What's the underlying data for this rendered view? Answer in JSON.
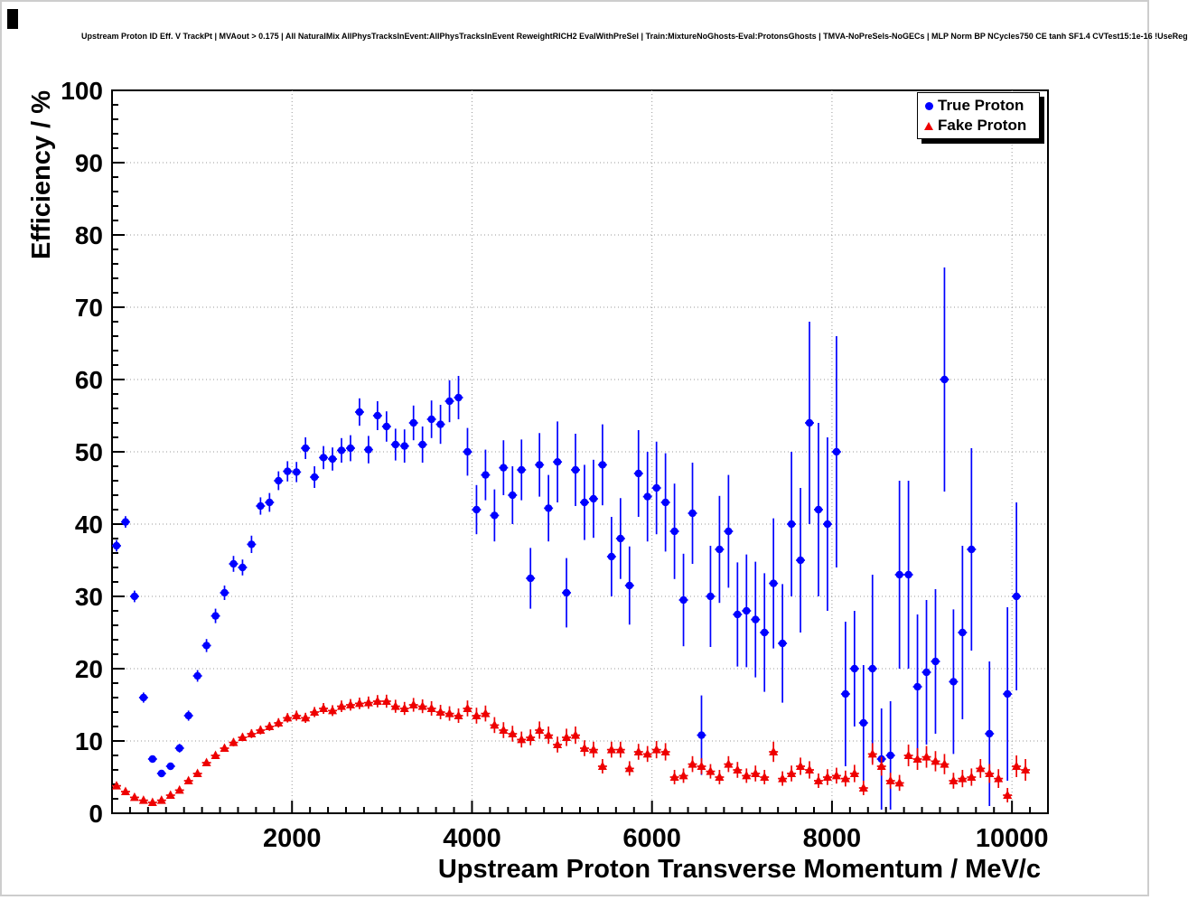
{
  "title": "Upstream Proton ID Eff. V TrackPt | MVAout > 0.175 | All NaturalMix AllPhysTracksInEvent:AllPhysTracksInEvent ReweightRICH2 EvalWithPreSel | Train:MixtureNoGhosts-Eval:ProtonsGhosts | TMVA-NoPreSels-NoGECs | MLP Norm BP NCycles750 CE tanh SF1.4 CVTest15:1e-16 !UseReg",
  "colors": {
    "true_proton": "#0000ff",
    "fake_proton": "#ee0000",
    "grid": "#999999",
    "axis": "#000000",
    "background": "#ffffff"
  },
  "chart_data": {
    "type": "scatter",
    "title": "Upstream Proton ID Eff. V TrackPt | MVAout > 0.175 | All NaturalMix AllPhysTracksInEvent:AllPhysTracksInEvent ReweightRICH2 EvalWithPreSel | Train:MixtureNoGhosts-Eval:ProtonsGhosts | TMVA-NoPreSels-NoGECs | MLP Norm BP NCycles750 CE tanh SF1.4 CVTest15:1e-16 !UseReg",
    "xlabel": "Upstream Proton Transverse Momentum / MeV/c",
    "ylabel": "Efficiency / %",
    "xlim": [
      0,
      10400
    ],
    "ylim": [
      0,
      100
    ],
    "x_ticks": [
      2000,
      4000,
      6000,
      8000,
      10000
    ],
    "y_ticks": [
      0,
      10,
      20,
      30,
      40,
      50,
      60,
      70,
      80,
      90,
      100
    ],
    "grid": true,
    "x_bin_half_width": 50,
    "legend": {
      "position": "top-right",
      "entries": [
        {
          "label": "True Proton",
          "marker": "circle",
          "color": "#0000ff"
        },
        {
          "label": "Fake Proton",
          "marker": "triangle",
          "color": "#ee0000"
        }
      ]
    },
    "series": [
      {
        "name": "True Proton",
        "marker": "circle",
        "color": "#0000ff",
        "points": [
          [
            50,
            37,
            0.8
          ],
          [
            150,
            40.3,
            0.8
          ],
          [
            250,
            30,
            0.8
          ],
          [
            350,
            16,
            0.7
          ],
          [
            450,
            7.5,
            0.5
          ],
          [
            550,
            5.5,
            0.5
          ],
          [
            650,
            6.5,
            0.5
          ],
          [
            750,
            9,
            0.6
          ],
          [
            850,
            13.5,
            0.7
          ],
          [
            950,
            19,
            0.8
          ],
          [
            1050,
            23.2,
            0.9
          ],
          [
            1150,
            27.3,
            1.0
          ],
          [
            1250,
            30.5,
            1.0
          ],
          [
            1350,
            34.5,
            1.1
          ],
          [
            1450,
            34,
            1.1
          ],
          [
            1550,
            37.2,
            1.2
          ],
          [
            1650,
            42.5,
            1.2
          ],
          [
            1750,
            43,
            1.3
          ],
          [
            1850,
            46,
            1.3
          ],
          [
            1950,
            47.3,
            1.4
          ],
          [
            2050,
            47.2,
            1.4
          ],
          [
            2150,
            50.5,
            1.5
          ],
          [
            2250,
            46.5,
            1.5
          ],
          [
            2350,
            49.2,
            1.6
          ],
          [
            2450,
            49,
            1.6
          ],
          [
            2550,
            50.2,
            1.7
          ],
          [
            2650,
            50.5,
            1.8
          ],
          [
            2750,
            55.5,
            1.9
          ],
          [
            2850,
            50.3,
            1.9
          ],
          [
            2950,
            55,
            2.0
          ],
          [
            3050,
            53.5,
            2.1
          ],
          [
            3150,
            51,
            2.2
          ],
          [
            3250,
            50.8,
            2.3
          ],
          [
            3350,
            54,
            2.4
          ],
          [
            3450,
            51,
            2.5
          ],
          [
            3550,
            54.5,
            2.6
          ],
          [
            3650,
            53.8,
            2.7
          ],
          [
            3750,
            57,
            2.9
          ],
          [
            3850,
            57.5,
            3.0
          ],
          [
            3950,
            50,
            3.3
          ],
          [
            4050,
            42,
            3.4
          ],
          [
            4150,
            46.8,
            3.5
          ],
          [
            4250,
            41.2,
            3.6
          ],
          [
            4350,
            47.8,
            3.8
          ],
          [
            4450,
            44,
            4.0
          ],
          [
            4550,
            47.5,
            4.2
          ],
          [
            4650,
            32.5,
            4.2
          ],
          [
            4750,
            48.2,
            4.4
          ],
          [
            4850,
            42.2,
            4.6
          ],
          [
            4950,
            48.6,
            5.6
          ],
          [
            5050,
            30.5,
            4.8
          ],
          [
            5150,
            47.5,
            5.0
          ],
          [
            5250,
            43,
            5.2
          ],
          [
            5350,
            43.5,
            5.4
          ],
          [
            5450,
            48.2,
            5.6
          ],
          [
            5550,
            35.5,
            5.5
          ],
          [
            5650,
            38,
            5.6
          ],
          [
            5750,
            31.5,
            5.4
          ],
          [
            5850,
            47,
            6.0
          ],
          [
            5950,
            43.8,
            6.2
          ],
          [
            6050,
            45,
            6.4
          ],
          [
            6150,
            43,
            6.8
          ],
          [
            6250,
            39,
            6.6
          ],
          [
            6350,
            29.5,
            6.4
          ],
          [
            6450,
            41.5,
            7.0
          ],
          [
            6550,
            10.8,
            5.5
          ],
          [
            6650,
            30,
            7.0
          ],
          [
            6750,
            36.5,
            7.4
          ],
          [
            6850,
            39,
            7.8
          ],
          [
            6950,
            27.5,
            7.2
          ],
          [
            7050,
            28,
            7.8
          ],
          [
            7150,
            26.8,
            8.0
          ],
          [
            7250,
            25,
            8.2
          ],
          [
            7350,
            31.8,
            9.0
          ],
          [
            7450,
            23.5,
            8.2
          ],
          [
            7550,
            40,
            10
          ],
          [
            7650,
            35,
            10
          ],
          [
            7750,
            54,
            14
          ],
          [
            7850,
            42,
            12
          ],
          [
            7950,
            40,
            12
          ],
          [
            8050,
            50,
            16
          ],
          [
            8150,
            16.5,
            10
          ],
          [
            8250,
            20,
            8
          ],
          [
            8350,
            12.5,
            8
          ],
          [
            8450,
            20,
            13
          ],
          [
            8550,
            7.5,
            7
          ],
          [
            8650,
            8,
            7.5
          ],
          [
            8750,
            33,
            13
          ],
          [
            8850,
            33,
            13
          ],
          [
            8950,
            17.5,
            10
          ],
          [
            9050,
            19.5,
            10
          ],
          [
            9150,
            21,
            10
          ],
          [
            9250,
            60,
            15.5
          ],
          [
            9350,
            18.2,
            10
          ],
          [
            9450,
            25,
            12
          ],
          [
            9550,
            36.5,
            14
          ],
          [
            9750,
            11,
            10
          ],
          [
            9950,
            16.5,
            12
          ],
          [
            10050,
            30,
            13
          ]
        ]
      },
      {
        "name": "Fake Proton",
        "marker": "triangle",
        "color": "#ee0000",
        "points": [
          [
            50,
            3.8,
            0.3
          ],
          [
            150,
            3.0,
            0.25
          ],
          [
            250,
            2.2,
            0.2
          ],
          [
            350,
            1.8,
            0.2
          ],
          [
            450,
            1.5,
            0.2
          ],
          [
            550,
            1.8,
            0.2
          ],
          [
            650,
            2.5,
            0.25
          ],
          [
            750,
            3.2,
            0.3
          ],
          [
            850,
            4.5,
            0.35
          ],
          [
            950,
            5.5,
            0.4
          ],
          [
            1050,
            7.0,
            0.45
          ],
          [
            1150,
            8.0,
            0.5
          ],
          [
            1250,
            9.0,
            0.5
          ],
          [
            1350,
            9.8,
            0.55
          ],
          [
            1450,
            10.5,
            0.55
          ],
          [
            1550,
            11.0,
            0.6
          ],
          [
            1650,
            11.5,
            0.6
          ],
          [
            1750,
            12.0,
            0.6
          ],
          [
            1850,
            12.5,
            0.65
          ],
          [
            1950,
            13.2,
            0.65
          ],
          [
            2050,
            13.5,
            0.7
          ],
          [
            2150,
            13.2,
            0.7
          ],
          [
            2250,
            14.0,
            0.7
          ],
          [
            2350,
            14.5,
            0.75
          ],
          [
            2450,
            14.2,
            0.75
          ],
          [
            2550,
            14.8,
            0.8
          ],
          [
            2650,
            15.0,
            0.8
          ],
          [
            2750,
            15.2,
            0.8
          ],
          [
            2850,
            15.3,
            0.85
          ],
          [
            2950,
            15.5,
            0.85
          ],
          [
            3050,
            15.5,
            0.9
          ],
          [
            3150,
            14.8,
            0.9
          ],
          [
            3250,
            14.5,
            0.9
          ],
          [
            3350,
            15.0,
            0.95
          ],
          [
            3450,
            14.8,
            0.95
          ],
          [
            3550,
            14.5,
            1.0
          ],
          [
            3650,
            14.0,
            1.0
          ],
          [
            3750,
            13.8,
            1.0
          ],
          [
            3850,
            13.5,
            1.0
          ],
          [
            3950,
            14.5,
            1.1
          ],
          [
            4050,
            13.5,
            1.1
          ],
          [
            4150,
            13.8,
            1.1
          ],
          [
            4250,
            12.2,
            1.1
          ],
          [
            4350,
            11.5,
            1.1
          ],
          [
            4450,
            11.0,
            1.1
          ],
          [
            4550,
            10.2,
            1.1
          ],
          [
            4650,
            10.5,
            1.1
          ],
          [
            4750,
            11.5,
            1.2
          ],
          [
            4850,
            10.8,
            1.2
          ],
          [
            4950,
            9.5,
            1.1
          ],
          [
            5050,
            10.5,
            1.2
          ],
          [
            5150,
            10.8,
            1.2
          ],
          [
            5250,
            9.0,
            1.1
          ],
          [
            5350,
            8.8,
            1.1
          ],
          [
            5450,
            6.5,
            1.0
          ],
          [
            5550,
            8.8,
            1.1
          ],
          [
            5650,
            8.8,
            1.1
          ],
          [
            5750,
            6.2,
            1.0
          ],
          [
            5850,
            8.5,
            1.1
          ],
          [
            5950,
            8.2,
            1.1
          ],
          [
            6050,
            8.8,
            1.2
          ],
          [
            6150,
            8.5,
            1.2
          ],
          [
            6250,
            5.0,
            1.0
          ],
          [
            6350,
            5.2,
            1.0
          ],
          [
            6450,
            6.8,
            1.1
          ],
          [
            6550,
            6.5,
            1.1
          ],
          [
            6650,
            5.8,
            1.0
          ],
          [
            6750,
            5.0,
            1.0
          ],
          [
            6850,
            6.8,
            1.1
          ],
          [
            6950,
            6.0,
            1.1
          ],
          [
            7050,
            5.2,
            1.0
          ],
          [
            7150,
            5.5,
            1.1
          ],
          [
            7250,
            5.0,
            1.0
          ],
          [
            7350,
            8.5,
            1.4
          ],
          [
            7450,
            4.8,
            1.0
          ],
          [
            7550,
            5.5,
            1.1
          ],
          [
            7650,
            6.5,
            1.2
          ],
          [
            7750,
            6.0,
            1.2
          ],
          [
            7850,
            4.5,
            1.0
          ],
          [
            7950,
            5.0,
            1.1
          ],
          [
            8050,
            5.2,
            1.1
          ],
          [
            8150,
            4.8,
            1.1
          ],
          [
            8250,
            5.5,
            1.2
          ],
          [
            8350,
            3.5,
            1.0
          ],
          [
            8450,
            8.2,
            1.5
          ],
          [
            8550,
            6.5,
            1.3
          ],
          [
            8650,
            4.5,
            1.1
          ],
          [
            8750,
            4.2,
            1.1
          ],
          [
            8850,
            8.0,
            1.5
          ],
          [
            8950,
            7.5,
            1.5
          ],
          [
            9050,
            7.8,
            1.5
          ],
          [
            9150,
            7.2,
            1.4
          ],
          [
            9250,
            6.8,
            1.4
          ],
          [
            9350,
            4.5,
            1.1
          ],
          [
            9450,
            4.8,
            1.2
          ],
          [
            9550,
            5.0,
            1.2
          ],
          [
            9650,
            6.2,
            1.3
          ],
          [
            9750,
            5.5,
            1.3
          ],
          [
            9850,
            4.8,
            1.3
          ],
          [
            9950,
            2.5,
            1.0
          ],
          [
            10050,
            6.5,
            1.5
          ],
          [
            10150,
            6.0,
            1.5
          ]
        ]
      }
    ]
  }
}
